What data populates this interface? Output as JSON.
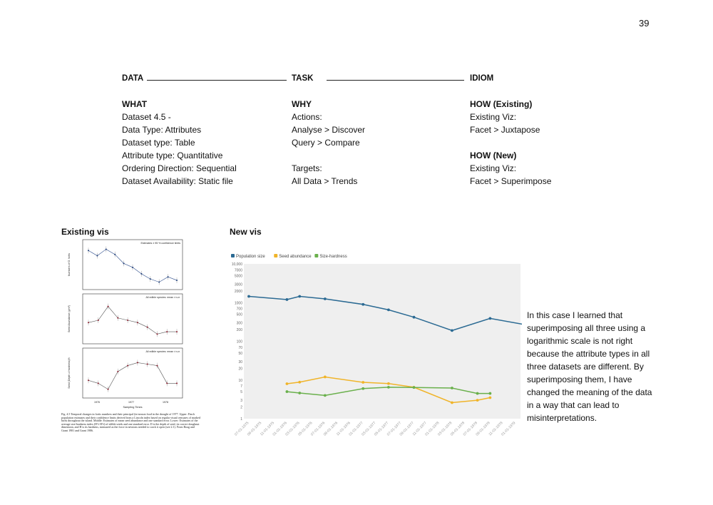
{
  "page_number": "39",
  "headers": {
    "data": "DATA",
    "task": "TASK",
    "idiom": "IDIOM"
  },
  "what": {
    "title": "WHAT",
    "lines": [
      "Dataset 4.5 -",
      "Data Type: Attributes",
      "Dataset type: Table",
      "Attribute type: Quantitative",
      "Ordering Direction: Sequential",
      "Dataset Availability: Static file"
    ]
  },
  "why": {
    "title": "WHY",
    "lines": [
      "Actions:",
      "Analyse > Discover",
      "Query > Compare",
      "",
      "Targets:",
      "All Data > Trends"
    ]
  },
  "how_existing": {
    "title": "HOW (Existing)",
    "lines": [
      "Existing Viz:",
      "Facet > Juxtapose"
    ]
  },
  "how_new": {
    "title": "HOW (New)",
    "lines": [
      "Existing Viz:",
      "Facet > Superimpose"
    ]
  },
  "existing_vis_label": "Existing vis",
  "new_vis_label": "New vis",
  "existing_vis": {
    "panel_titles": [
      "Estimates ± 95 % confidence limits",
      "All edible species: mean ± s.e.",
      "All edible species: mean ± s.e."
    ],
    "ylabels": [
      "Numbers of G. fortis",
      "Seed Abundance (g/m²)",
      "Seed (Depth x Hardness)½"
    ],
    "xlabel": "Sampling Times",
    "years": [
      "1976",
      "1977",
      "1978"
    ],
    "panel1": [
      1400,
      1200,
      1450,
      1250,
      900,
      750,
      500,
      300,
      180,
      380,
      250
    ],
    "panel2": [
      8,
      9,
      15,
      10,
      9,
      8,
      6,
      3,
      4,
      4
    ],
    "panel3": [
      0.5,
      0.4,
      0.2,
      0.8,
      1.0,
      1.1,
      1.05,
      1.0,
      0.4,
      0.4
    ],
    "caption": "Fig. 4.5 Temporal changes in fortis numbers and their principal (in-season food in the drought of 1977. Upper: Finch population estimates and their confidence limits derived from a Lincoln index based on regular visual censuses of marked birds throughout the island. Middle: Estimates of mean seed abundance and one standard error. Lower: Estimates of the average size-hardness index (D½ H½) of edible seeds and one standard error. D is the depth of seed, its correct doughnut dimension, and H is its hardness, measured as the force in newtons needed to crack it open (see 2.1). From Boag and Grant 1981 and Grant 1986."
  },
  "chart_data": {
    "type": "line",
    "title": "",
    "legend_placement": "top-left",
    "yscale": "log",
    "ylim": [
      1,
      10000
    ],
    "y_ticks": [
      1,
      2,
      3,
      5,
      7,
      10,
      20,
      30,
      50,
      70,
      100,
      200,
      300,
      500,
      700,
      1000,
      2000,
      3000,
      5000,
      7000,
      10000
    ],
    "y_tick_labels": [
      "1",
      "2",
      "3",
      "5",
      "7",
      "10",
      "20",
      "30",
      "50",
      "70",
      "100",
      "200",
      "300",
      "500",
      "700",
      "1000",
      "2000",
      "3000",
      "5000",
      "7000",
      "10,000"
    ],
    "x": [
      "07-01-1975",
      "09-01-1975",
      "11-01-1975",
      "01-01-1976",
      "03-01-1976",
      "05-01-1976",
      "07-01-1976",
      "09-01-1976",
      "11-01-1976",
      "01-01-1977",
      "03-01-1977",
      "05-01-1977",
      "07-01-1977",
      "09-01-1977",
      "11-01-1977",
      "01-01-1978",
      "03-01-1978",
      "05-01-1978",
      "07-01-1978",
      "09-01-1978",
      "11-01-1978",
      "01-01-1979"
    ],
    "series": [
      {
        "name": "Population size",
        "color": "#2b6a93",
        "points": [
          [
            0,
            1450
          ],
          [
            3,
            1200
          ],
          [
            4,
            1450
          ],
          [
            6,
            1250
          ],
          [
            9,
            900
          ],
          [
            11,
            650
          ],
          [
            13,
            420
          ],
          [
            16,
            190
          ],
          [
            19,
            390
          ],
          [
            22,
            260
          ]
        ]
      },
      {
        "name": "Seed abundance",
        "color": "#f0b429",
        "points": [
          [
            3,
            8
          ],
          [
            4,
            8.8
          ],
          [
            6,
            12
          ],
          [
            9,
            8.7
          ],
          [
            11,
            8.1
          ],
          [
            13,
            6.5
          ],
          [
            16,
            2.6
          ],
          [
            18,
            3
          ],
          [
            19,
            3.5
          ]
        ]
      },
      {
        "name": "Size-hardness",
        "color": "#6ab04c",
        "points": [
          [
            3,
            5
          ],
          [
            4,
            4.6
          ],
          [
            6,
            4
          ],
          [
            9,
            6
          ],
          [
            11,
            6.5
          ],
          [
            13,
            6.4
          ],
          [
            16,
            6.2
          ],
          [
            18,
            4.5
          ],
          [
            19,
            4.5
          ]
        ]
      }
    ]
  },
  "paragraph": "In this case I learned that superimposing all three using a logarithmic scale is not right because the attribute types in all three datasets are different. By superimposing them, I have changed the meaning of the data in a way that can lead to misinterpretations."
}
